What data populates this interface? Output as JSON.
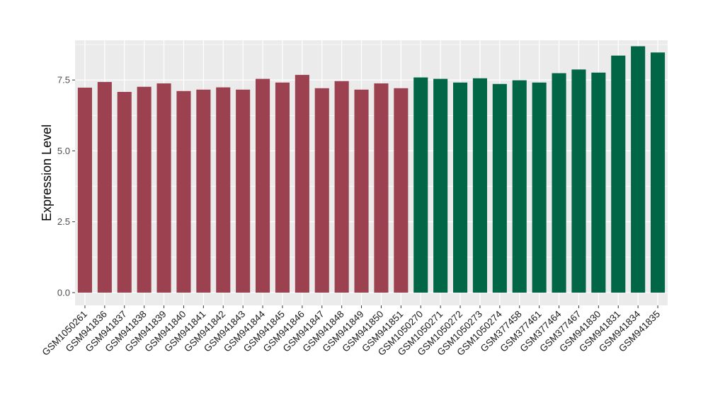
{
  "chart_data": {
    "type": "bar",
    "title": "",
    "xlabel": "",
    "ylabel": "Expression Level",
    "ylim": [
      -0.45,
      8.9
    ],
    "yticks": [
      0.0,
      2.5,
      5.0,
      7.5
    ],
    "ytick_labels": [
      "0.0",
      "2.5",
      "5.0",
      "7.5"
    ],
    "grid": true,
    "legend": "none",
    "colors": {
      "group1": "#9b4150",
      "group2": "#006646",
      "panel": "#ebebeb",
      "grid": "#ffffff"
    },
    "categories": [
      "GSM1050261",
      "GSM941836",
      "GSM941837",
      "GSM941838",
      "GSM941839",
      "GSM941840",
      "GSM941841",
      "GSM941842",
      "GSM941843",
      "GSM941844",
      "GSM941845",
      "GSM941846",
      "GSM941847",
      "GSM941848",
      "GSM941849",
      "GSM941850",
      "GSM941851",
      "GSM1050270",
      "GSM1050271",
      "GSM1050272",
      "GSM1050273",
      "GSM1050274",
      "GSM377458",
      "GSM377461",
      "GSM377464",
      "GSM377467",
      "GSM941830",
      "GSM941831",
      "GSM941834",
      "GSM941835"
    ],
    "values": [
      7.23,
      7.43,
      7.08,
      7.26,
      7.38,
      7.11,
      7.16,
      7.24,
      7.16,
      7.54,
      7.41,
      7.68,
      7.21,
      7.46,
      7.16,
      7.38,
      7.21,
      7.59,
      7.54,
      7.41,
      7.56,
      7.36,
      7.49,
      7.41,
      7.74,
      7.87,
      7.76,
      8.36,
      8.69,
      8.47
    ],
    "groups": [
      1,
      1,
      1,
      1,
      1,
      1,
      1,
      1,
      1,
      1,
      1,
      1,
      1,
      1,
      1,
      1,
      1,
      2,
      2,
      2,
      2,
      2,
      2,
      2,
      2,
      2,
      2,
      2,
      2,
      2
    ]
  }
}
